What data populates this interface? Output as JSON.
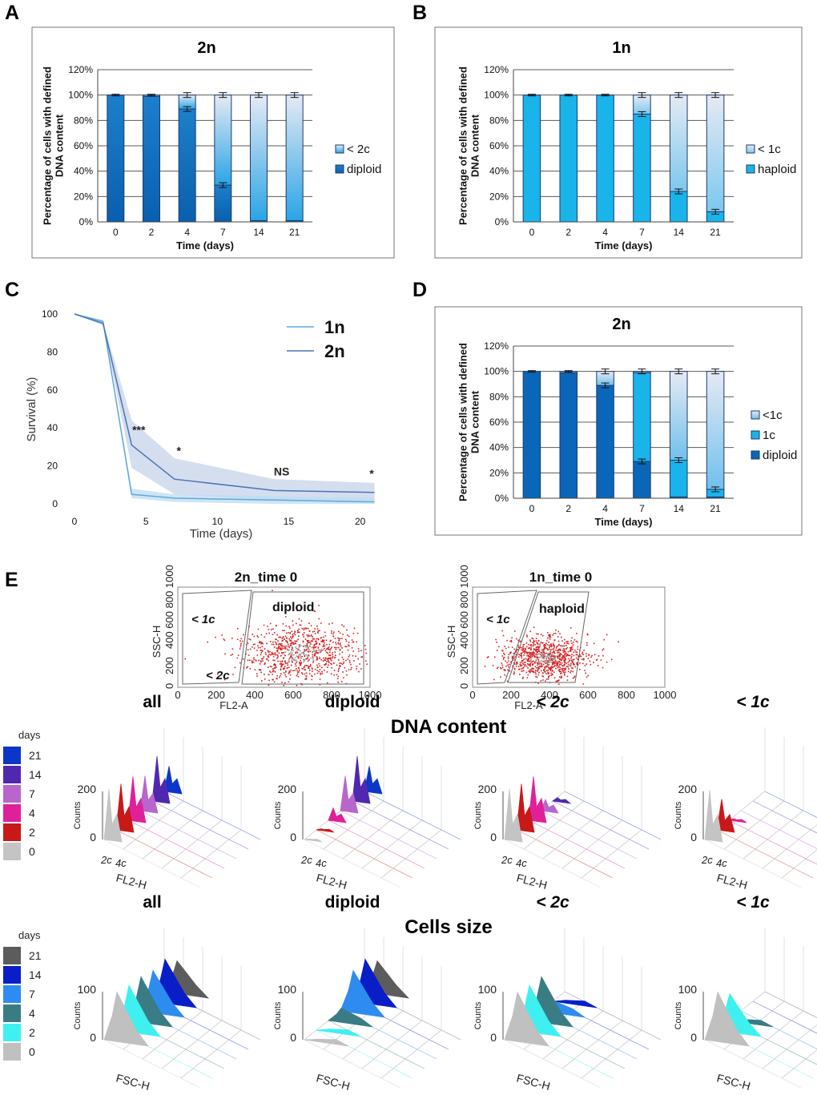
{
  "panel_labels": {
    "a": "A",
    "b": "B",
    "c": "C",
    "d": "D",
    "e": "E"
  },
  "colors": {
    "diploid": "#0a66b8",
    "haploid": "#18b4ea",
    "one_c": "#18b4ea",
    "lt_pale": "#e4e8f3",
    "gridline": "#555555",
    "band_1n": "#bcdcf0",
    "band_2n": "#c6d3ea",
    "line_1n": "#5fa9dc",
    "line_2n": "#4c74b6",
    "scatter": "#d62020"
  },
  "chart_data": [
    {
      "id": "A",
      "type": "bar",
      "title": "2n",
      "ylabel": "Percentage of cells with defined DNA content",
      "xlabel": "Time (days)",
      "yticks": [
        "0%",
        "20%",
        "40%",
        "60%",
        "80%",
        "100%",
        "120%"
      ],
      "ylim": [
        0,
        120
      ],
      "categories": [
        "0",
        "2",
        "4",
        "7",
        "14",
        "21"
      ],
      "series": [
        {
          "name": "diploid",
          "values": [
            100,
            99,
            89,
            29,
            1,
            1
          ]
        },
        {
          "name": "< 2c",
          "values": [
            0,
            1,
            11,
            71,
            99,
            99
          ]
        }
      ],
      "legend": [
        "< 2c",
        "diploid"
      ]
    },
    {
      "id": "B",
      "type": "bar",
      "title": "1n",
      "ylabel": "Percentage of cells with defined DNA content",
      "xlabel": "Time (days)",
      "yticks": [
        "0%",
        "20%",
        "40%",
        "60%",
        "80%",
        "100%",
        "120%"
      ],
      "ylim": [
        0,
        120
      ],
      "categories": [
        "0",
        "2",
        "4",
        "7",
        "14",
        "21"
      ],
      "series": [
        {
          "name": "haploid",
          "values": [
            100,
            100,
            100,
            85,
            24,
            8
          ]
        },
        {
          "name": "< 1c",
          "values": [
            0,
            0,
            0,
            15,
            76,
            92
          ]
        }
      ],
      "legend": [
        "< 1c",
        "haploid"
      ]
    },
    {
      "id": "C",
      "type": "line",
      "xlabel": "Time (days)",
      "ylabel": "Survival (%)",
      "xticks": [
        "0",
        "5",
        "10",
        "15",
        "20"
      ],
      "yticks": [
        "0",
        "20",
        "40",
        "60",
        "80",
        "100"
      ],
      "xlim": [
        -0.5,
        21
      ],
      "ylim": [
        -2,
        103
      ],
      "series": [
        {
          "name": "1n",
          "x": [
            0,
            2,
            4,
            7,
            14,
            21
          ],
          "y": [
            100,
            96,
            5,
            3,
            2,
            1
          ],
          "upper": [
            100,
            97,
            8,
            5,
            4,
            3
          ],
          "lower": [
            100,
            95,
            3,
            1,
            0,
            0
          ]
        },
        {
          "name": "2n",
          "x": [
            0,
            2,
            4,
            7,
            14,
            21
          ],
          "y": [
            100,
            95,
            31,
            13,
            7,
            6
          ],
          "upper": [
            100,
            96,
            44,
            24,
            13,
            11
          ],
          "lower": [
            100,
            94,
            19,
            5,
            2,
            1
          ]
        }
      ],
      "annotations": [
        {
          "text": "***",
          "x": 4.5,
          "y": 37
        },
        {
          "text": "*",
          "x": 7.3,
          "y": 26
        },
        {
          "text": "NS",
          "x": 14.5,
          "y": 15
        },
        {
          "text": "*",
          "x": 20.8,
          "y": 14
        }
      ],
      "legend": [
        "1n",
        "2n"
      ]
    },
    {
      "id": "D",
      "type": "bar",
      "title": "2n",
      "ylabel": "Percentage of cells with defined DNA content",
      "xlabel": "Time (days)",
      "yticks": [
        "0%",
        "20%",
        "40%",
        "60%",
        "80%",
        "100%",
        "120%"
      ],
      "ylim": [
        0,
        120
      ],
      "categories": [
        "0",
        "2",
        "4",
        "7",
        "14",
        "21"
      ],
      "series": [
        {
          "name": "diploid",
          "values": [
            100,
            99,
            89,
            29,
            1,
            1
          ]
        },
        {
          "name": "1c",
          "values": [
            0,
            0,
            0,
            70,
            29,
            6
          ]
        },
        {
          "name": "<1c",
          "values": [
            0,
            1,
            11,
            1,
            70,
            93
          ]
        }
      ],
      "legend": [
        "<1c",
        "1c",
        "diploid"
      ]
    }
  ],
  "panel_e": {
    "scatter_2n": {
      "title": "2n_time 0",
      "ylabel": "SSC-H",
      "xlabel": "FL2-A",
      "xticks": [
        "0",
        "200",
        "400",
        "600",
        "800",
        "1000"
      ],
      "yticks": [
        "0",
        "200",
        "400 600 800 1000"
      ],
      "gates": [
        "< 1c",
        "< 2c",
        "diploid"
      ]
    },
    "scatter_1n": {
      "title": "1n_time 0",
      "ylabel": "SSC-H",
      "xlabel": "FL2-A",
      "xticks": [
        "0",
        "200",
        "400",
        "600",
        "800",
        "1000"
      ],
      "yticks": [
        "0",
        "200",
        "400 600 800 1000"
      ],
      "gates": [
        "< 1c",
        "haploid"
      ]
    },
    "dna_section": "DNA content",
    "size_section": "Cells size",
    "days_label": "days",
    "dna_days": [
      {
        "day": "21",
        "color": "#0b36c8"
      },
      {
        "day": "14",
        "color": "#5028b0"
      },
      {
        "day": "7",
        "color": "#b866cc"
      },
      {
        "day": "4",
        "color": "#e0209a"
      },
      {
        "day": "2",
        "color": "#c81818"
      },
      {
        "day": "0",
        "color": "#c4c4c4"
      }
    ],
    "size_days": [
      {
        "day": "21",
        "color": "#5c5c5c"
      },
      {
        "day": "14",
        "color": "#0a1ec8"
      },
      {
        "day": "7",
        "color": "#2e8cf0"
      },
      {
        "day": "4",
        "color": "#3a7c84"
      },
      {
        "day": "2",
        "color": "#3ef0f0"
      },
      {
        "day": "0",
        "color": "#c0c0c0"
      }
    ],
    "dna_histos": [
      {
        "title": "all",
        "ymax": "200",
        "ylabel": "Counts",
        "xlabel": "FL2-H",
        "peaks": [
          "2c",
          "4c"
        ],
        "heights": [
          0.45,
          0.8,
          0.62,
          0.78,
          0.82,
          0.9
        ]
      },
      {
        "title": "diploid",
        "ymax": "200",
        "ylabel": "Counts",
        "xlabel": "FL2-H",
        "peaks": [
          "2c",
          "4c"
        ],
        "heights": [
          0.45,
          0.8,
          0.62,
          0.22,
          0.02,
          0.01
        ]
      },
      {
        "title": "< 2c",
        "ymax": "200",
        "ylabel": "Counts",
        "xlabel": "FL2-H",
        "peaks": [
          "2c",
          "4c"
        ],
        "heights": [
          0.0,
          0.06,
          0.2,
          0.78,
          0.82,
          0.9
        ]
      },
      {
        "title": "< 1c",
        "ymax": "200",
        "ylabel": "Counts",
        "xlabel": "FL2-H",
        "peaks": [
          "2c",
          "4c"
        ],
        "heights": [
          0.0,
          0.0,
          0.0,
          0.03,
          0.55,
          0.88
        ]
      }
    ],
    "size_histos": [
      {
        "title": "all",
        "ymax": "100",
        "ylabel": "Counts",
        "xlabel": "FSC-H",
        "heights": [
          0.55,
          0.75,
          0.72,
          0.78,
          0.8,
          0.85
        ]
      },
      {
        "title": "diploid",
        "ymax": "100",
        "ylabel": "Counts",
        "xlabel": "FSC-H",
        "heights": [
          0.55,
          0.75,
          0.72,
          0.22,
          0.02,
          0.01
        ]
      },
      {
        "title": "< 2c",
        "ymax": "100",
        "ylabel": "Counts",
        "xlabel": "FSC-H",
        "heights": [
          0.0,
          0.02,
          0.18,
          0.78,
          0.8,
          0.85
        ]
      },
      {
        "title": "< 1c",
        "ymax": "100",
        "ylabel": "Counts",
        "xlabel": "FSC-H",
        "heights": [
          0.0,
          0.0,
          0.0,
          0.02,
          0.65,
          0.85
        ]
      }
    ]
  }
}
